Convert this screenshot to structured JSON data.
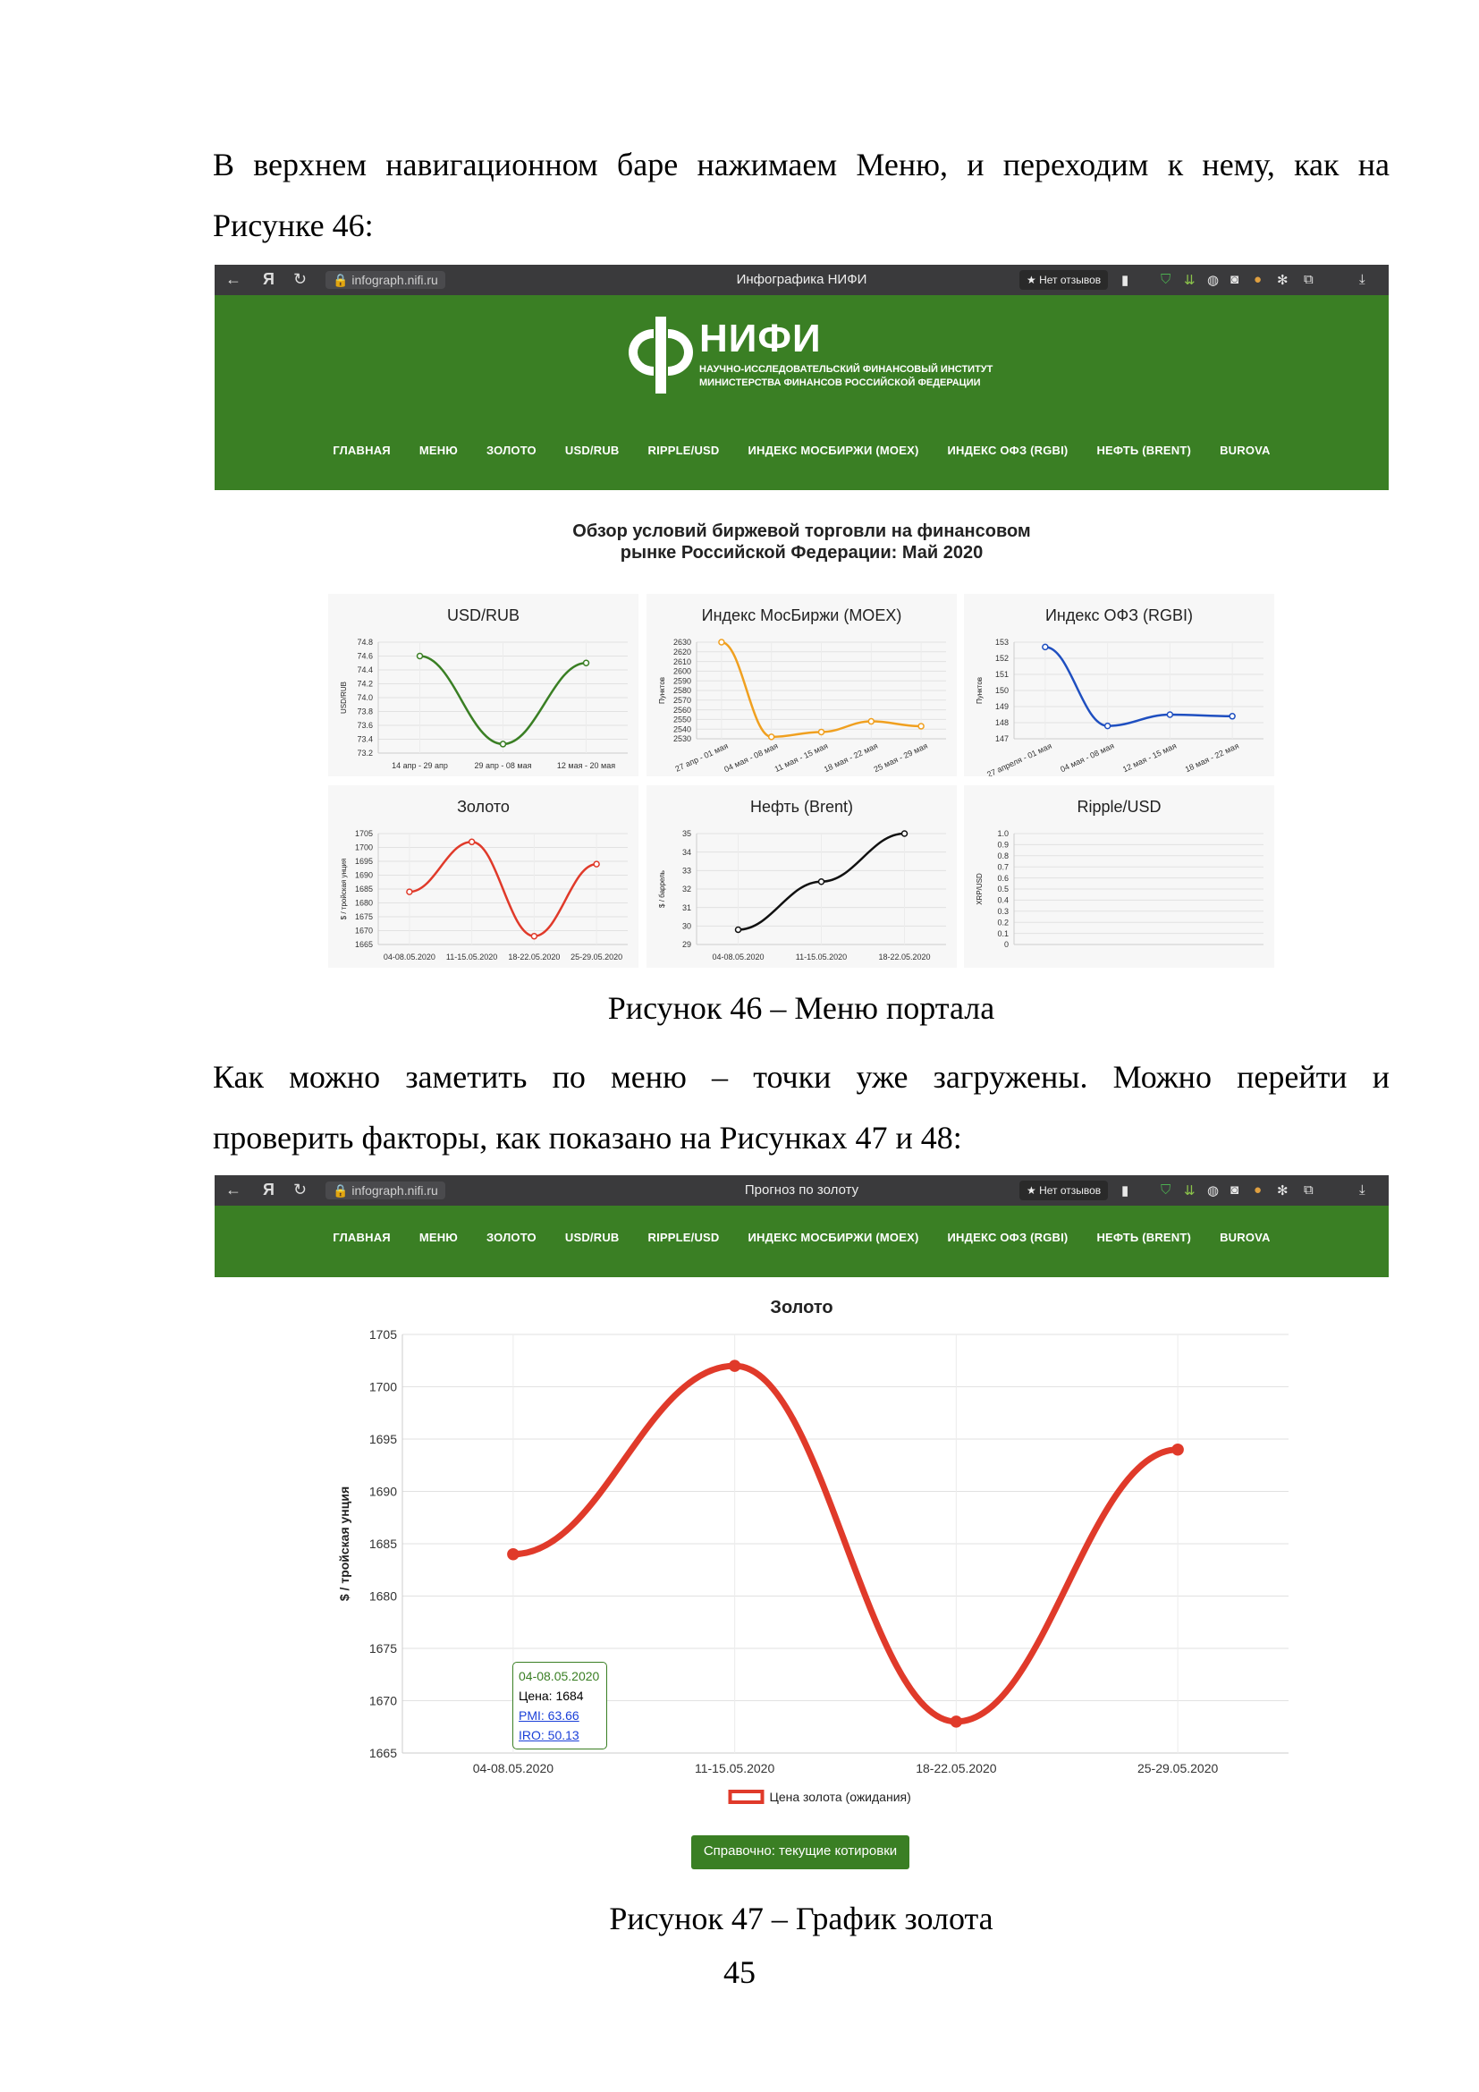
{
  "text": {
    "para1_line1": "В верхнем навигационном баре нажимаем Меню, и переходим к нему, как на",
    "para1_line2": "Рисунке 46:",
    "caption46": "Рисунок 46 – Меню портала",
    "para2_line1": "Как можно заметить по меню – точки уже загружены. Можно перейти и",
    "para2_line2": "проверить факторы, как показано на Рисунках 47 и 48:",
    "caption47": "Рисунок 47 – График золота",
    "page_number": "45"
  },
  "browser1": {
    "url": "infograph.nifi.ru",
    "tab_title": "Инфографика НИФИ",
    "reviews": "★ Нет отзывов",
    "logo_name": "НИФИ",
    "logo_sub1": "НАУЧНО-ИССЛЕДОВАТЕЛЬСКИЙ ФИНАНСОВЫЙ ИНСТИТУТ",
    "logo_sub2": "МИНИСТЕРСТВА ФИНАНСОВ РОССИЙСКОЙ ФЕДЕРАЦИИ",
    "page_title_1": "Обзор условий биржевой торговли на финансовом",
    "page_title_2": "рынке Российской Федерации: Май 2020"
  },
  "browser2": {
    "url": "infograph.nifi.ru",
    "tab_title": "Прогноз по золоту",
    "reviews": "★ Нет отзывов",
    "button": "Справочно: текущие котировки",
    "tooltip": {
      "title": "04-08.05.2020",
      "price": "Цена: 1684",
      "pmi": "PMI: 63.66",
      "iro": "IRO: 50.13"
    }
  },
  "menu": [
    "ГЛАВНАЯ",
    "МЕНЮ",
    "ЗОЛОТО",
    "USD/RUB",
    "RIPPLE/USD",
    "ИНДЕКС МОСБИРЖИ (MOEX)",
    "ИНДЕКС ОФЗ (RGBI)",
    "НЕФТЬ (BRENT)",
    "BUROVA"
  ],
  "chart_data": [
    {
      "id": "usdrub",
      "type": "line",
      "title": "USD/RUB",
      "ylabel": "USD/RUB",
      "color": "#3a7f24",
      "categories": [
        "14 апр - 29 апр",
        "29 апр - 08 мая",
        "12 мая - 20 мая"
      ],
      "values": [
        74.6,
        73.33,
        74.5
      ],
      "ylim": [
        73.2,
        74.8
      ],
      "yticks": [
        "74.8",
        "74.6",
        "74.4",
        "74.2",
        "74.0",
        "73.8",
        "73.6",
        "73.4",
        "73.2"
      ]
    },
    {
      "id": "moex",
      "type": "line",
      "title": "Индекс МосБиржи (MOEX)",
      "ylabel": "Пунктов",
      "color": "#f0a020",
      "categories": [
        "27 апр - 01 мая",
        "04 мая - 08 мая",
        "11 мая - 15 мая",
        "18 мая - 22 мая",
        "25 мая - 29 мая"
      ],
      "values": [
        2630,
        2532,
        2537,
        2548,
        2543
      ],
      "ylim": [
        2530,
        2630
      ],
      "yticks": [
        "2630",
        "2620",
        "2610",
        "2600",
        "2590",
        "2580",
        "2570",
        "2560",
        "2550",
        "2540",
        "2530"
      ]
    },
    {
      "id": "rgbi",
      "type": "line",
      "title": "Индекс ОФЗ (RGBI)",
      "ylabel": "Пунктов",
      "color": "#1f4fc0",
      "categories": [
        "27 апреля - 01 мая",
        "04 мая - 08 мая",
        "12 мая - 15 мая",
        "18 мая - 22 мая"
      ],
      "values": [
        152.7,
        147.8,
        148.5,
        148.4
      ],
      "ylim": [
        147,
        153
      ],
      "yticks": [
        "153",
        "152",
        "151",
        "150",
        "149",
        "148",
        "147"
      ]
    },
    {
      "id": "gold_small",
      "type": "line",
      "title": "Золото",
      "ylabel": "$ / тройская унция",
      "color": "#e03a2a",
      "categories": [
        "04-08.05.2020",
        "11-15.05.2020",
        "18-22.05.2020",
        "25-29.05.2020"
      ],
      "values": [
        1684,
        1702,
        1668,
        1694
      ],
      "ylim": [
        1665,
        1705
      ],
      "yticks": [
        "1705",
        "1700",
        "1695",
        "1690",
        "1685",
        "1680",
        "1675",
        "1670",
        "1665"
      ]
    },
    {
      "id": "brent",
      "type": "line",
      "title": "Нефть (Brent)",
      "ylabel": "$ / баррель",
      "color": "#111111",
      "categories": [
        "04-08.05.2020",
        "11-15.05.2020",
        "18-22.05.2020"
      ],
      "values": [
        29.8,
        32.4,
        35.0
      ],
      "ylim": [
        29,
        35
      ],
      "yticks": [
        "35",
        "34",
        "33",
        "32",
        "31",
        "30",
        "29"
      ]
    },
    {
      "id": "ripple",
      "type": "line",
      "title": "Ripple/USD",
      "ylabel": "XRP/USD",
      "color": "#999999",
      "categories": [],
      "values": [],
      "ylim": [
        0,
        1.0
      ],
      "yticks": [
        "1.0",
        "0.9",
        "0.8",
        "0.7",
        "0.6",
        "0.5",
        "0.4",
        "0.3",
        "0.2",
        "0.1",
        "0"
      ]
    },
    {
      "id": "gold_big",
      "type": "line",
      "title": "Золото",
      "ylabel": "$ / тройская унция",
      "color": "#e03a2a",
      "series_name": "Цена золота (ожидания)",
      "categories": [
        "04-08.05.2020",
        "11-15.05.2020",
        "18-22.05.2020",
        "25-29.05.2020"
      ],
      "values": [
        1684,
        1702,
        1668,
        1694
      ],
      "ylim": [
        1665,
        1705
      ],
      "yticks": [
        "1705",
        "1700",
        "1695",
        "1690",
        "1685",
        "1680",
        "1675",
        "1670",
        "1665"
      ]
    }
  ]
}
